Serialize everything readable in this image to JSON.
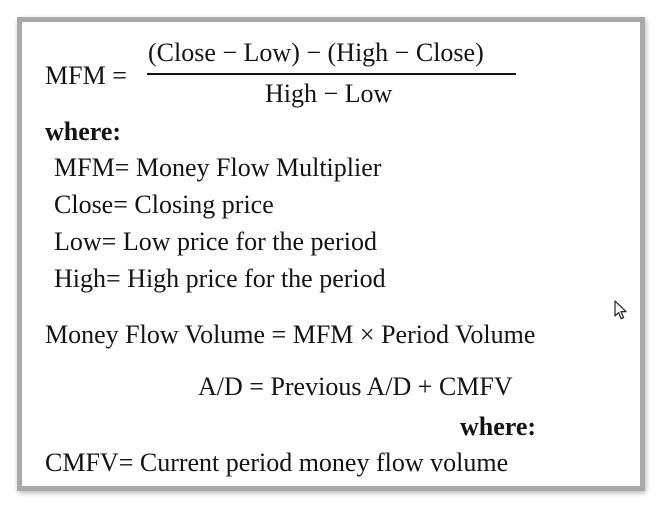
{
  "formula": {
    "mfm_label": "MFM =",
    "numerator": "(Close − Low) − (High − Close)",
    "denominator": "High − Low"
  },
  "where_label": "where:",
  "definitions": [
    "MFM= Money Flow Multiplier",
    "Close= Closing price",
    "Low= Low price for the period",
    "High= High price for the period"
  ],
  "money_flow_volume": "Money Flow Volume = MFM × Period Volume",
  "ad_formula": "A/D = Previous A/D + CMFV",
  "where_label_2": "where:",
  "cmfv_definition": "CMFV= Current period money flow volume",
  "icons": {
    "cursor": "mouse-pointer-icon"
  }
}
